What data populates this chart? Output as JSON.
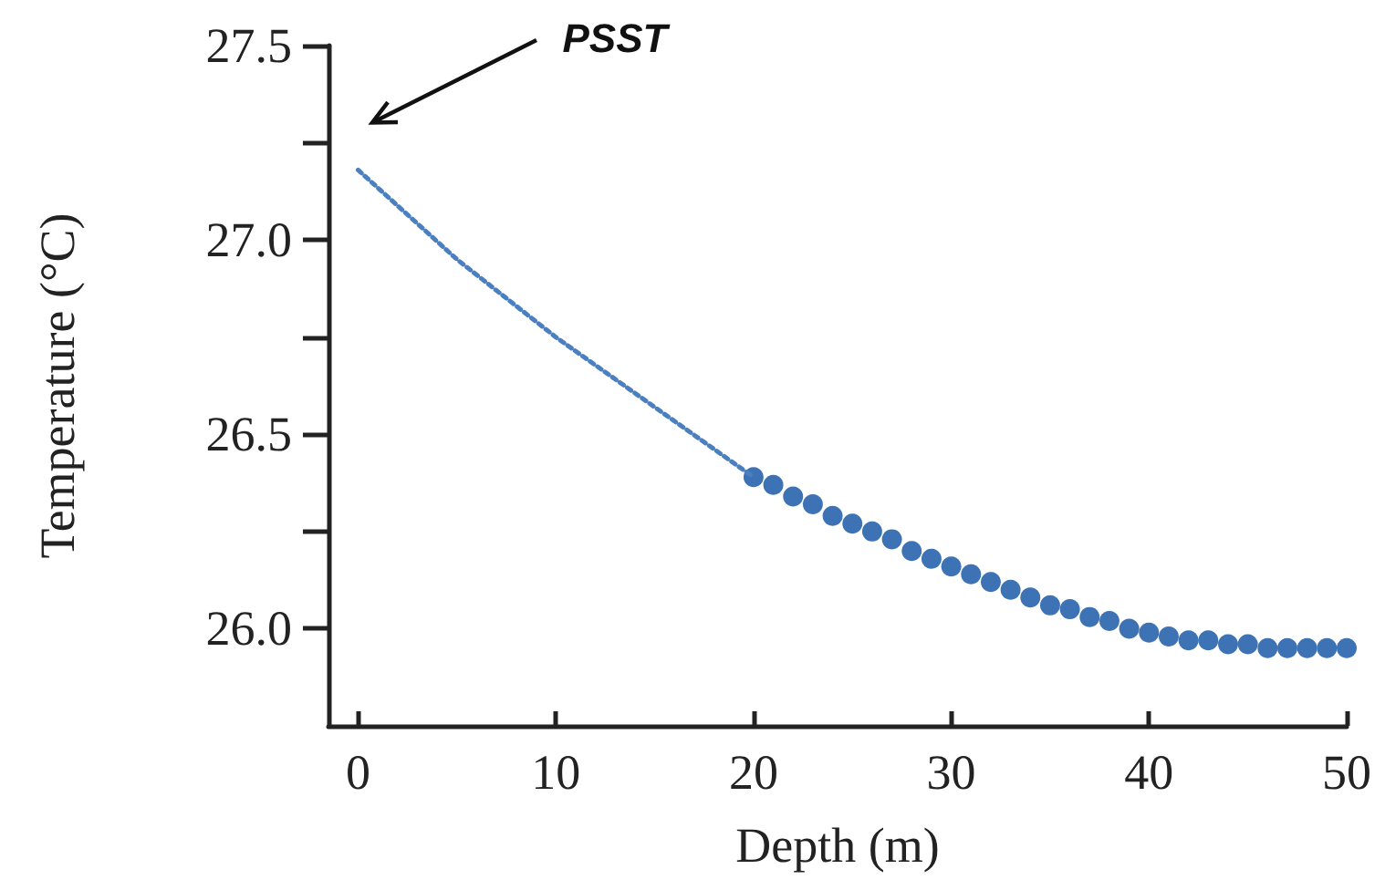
{
  "chart_data": {
    "type": "line",
    "xlabel": "Depth (m)",
    "ylabel": "Temperature (°C)",
    "xlim": [
      -1.5,
      50
    ],
    "xticks": [
      0,
      10,
      20,
      30,
      40,
      50
    ],
    "ylim": [
      25.75,
      27.5
    ],
    "yticks": [
      {
        "value": 26,
        "label": "26.0"
      },
      {
        "value": 26.25,
        "label": null
      },
      {
        "value": 26.5,
        "label": "26.5"
      },
      {
        "value": 26.75,
        "label": null
      },
      {
        "value": 27,
        "label": "27.0"
      },
      {
        "value": 27.25,
        "label": null
      },
      {
        "value": 27.5,
        "label": "27.5"
      }
    ],
    "grid": false,
    "annotations": [
      "PSST"
    ],
    "series": [
      {
        "color": "#4a7fc0",
        "line_style": "dotted",
        "marker": "none",
        "x": [
          0,
          5,
          10,
          15,
          20
        ],
        "values": [
          27.18,
          26.95,
          26.75,
          26.57,
          26.39
        ]
      },
      {
        "type": "scatter",
        "color": "#3d72b4",
        "marker": "circle",
        "x": [
          20,
          21,
          22,
          23,
          24,
          25,
          26,
          27,
          28,
          29,
          30,
          31,
          32,
          33,
          34,
          35,
          36,
          37,
          38,
          39,
          40,
          41,
          42,
          43,
          44,
          45,
          46,
          47,
          48,
          49,
          50
        ],
        "values": [
          26.39,
          26.37,
          26.34,
          26.32,
          26.29,
          26.27,
          26.25,
          26.23,
          26.2,
          26.18,
          26.16,
          26.14,
          26.12,
          26.1,
          26.08,
          26.06,
          26.05,
          26.03,
          26.02,
          26.0,
          25.99,
          25.98,
          25.97,
          25.97,
          25.96,
          25.96,
          25.95,
          25.95,
          25.95,
          25.95,
          25.95
        ]
      }
    ]
  }
}
